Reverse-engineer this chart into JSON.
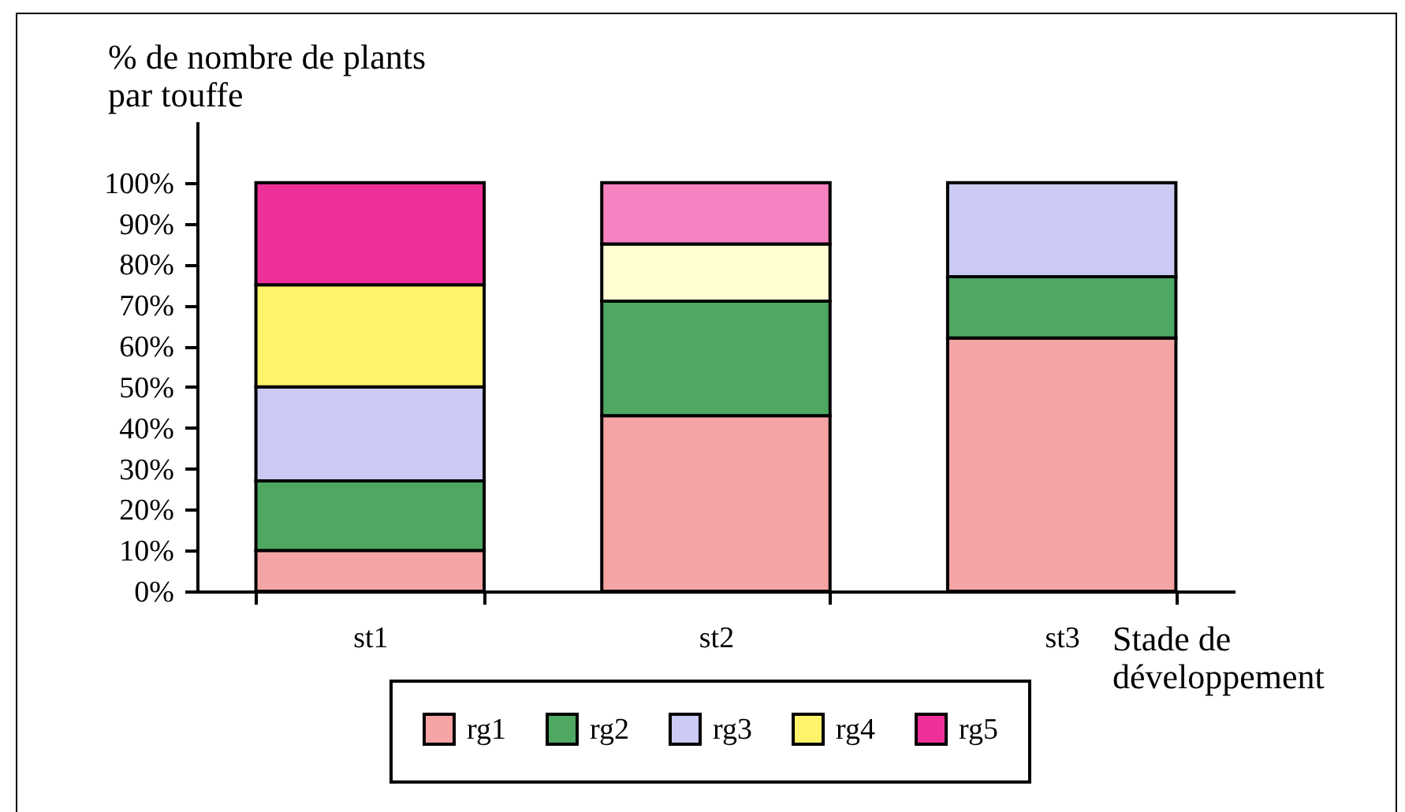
{
  "chart_data": {
    "type": "bar",
    "stacked": true,
    "categories": [
      "st1",
      "st2",
      "st3"
    ],
    "xlabel": "Stade de développement",
    "ylabel": "% de nombre de plants par touffe",
    "ylim": [
      0,
      115
    ],
    "yticks": [
      {
        "value": 0,
        "label": "0%"
      },
      {
        "value": 10,
        "label": "10%"
      },
      {
        "value": 20,
        "label": "20%"
      },
      {
        "value": 30,
        "label": "30%"
      },
      {
        "value": 40,
        "label": "40%"
      },
      {
        "value": 50,
        "label": "50%"
      },
      {
        "value": 60,
        "label": "60%"
      },
      {
        "value": 70,
        "label": "70%"
      },
      {
        "value": 80,
        "label": "80%"
      },
      {
        "value": 90,
        "label": "90%"
      },
      {
        "value": 100,
        "label": "100%"
      }
    ],
    "grid": false,
    "legend": "bottom",
    "series": [
      {
        "name": "rg1",
        "color": "#f4a4a4",
        "values": [
          10,
          43,
          62
        ]
      },
      {
        "name": "rg2",
        "color": "#4ea862",
        "values": [
          17,
          28,
          15
        ]
      },
      {
        "name": "rg3",
        "color": "#cacaf4",
        "values": [
          23,
          null,
          23
        ]
      },
      {
        "name": "rg4",
        "color": "#fff36a",
        "colors": [
          "#fff36a",
          "#ffffd2",
          null
        ],
        "values": [
          25,
          14,
          null
        ]
      },
      {
        "name": "rg5",
        "color": "#f0309a",
        "colors": [
          "#f0309a",
          "#f782c2",
          null
        ],
        "values": [
          25,
          15,
          null
        ]
      }
    ]
  }
}
